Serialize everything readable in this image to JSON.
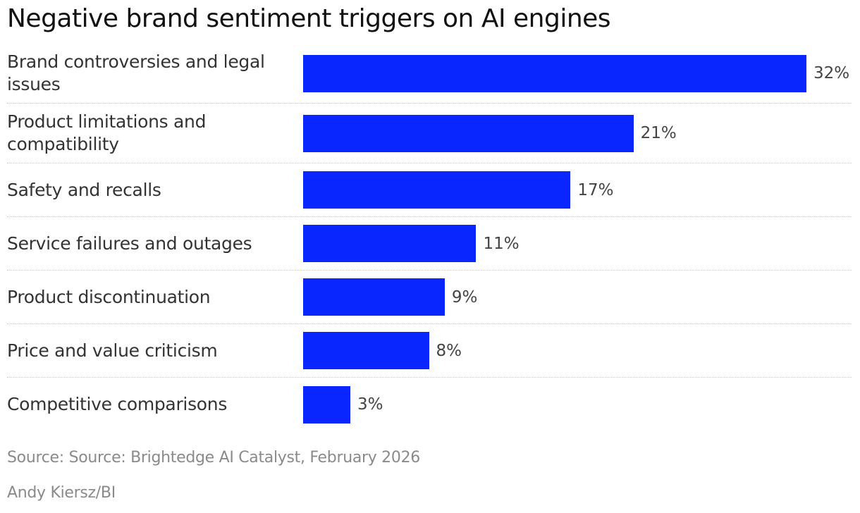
{
  "chart_data": {
    "type": "bar",
    "orientation": "horizontal",
    "title": "Negative brand sentiment triggers on AI engines",
    "categories": [
      "Brand controversies and legal issues",
      "Product limitations and compatibility",
      "Safety and recalls",
      "Service failures and outages",
      "Product discontinuation",
      "Price and value criticism",
      "Competitive comparisons"
    ],
    "values": [
      32,
      21,
      17,
      11,
      9,
      8,
      3
    ],
    "value_labels": [
      "32%",
      "21%",
      "17%",
      "11%",
      "9%",
      "8%",
      "3%"
    ],
    "color": "#0a26ff",
    "source": "Source: Source: Brightedge AI Catalyst, February 2026",
    "credit": "Andy Kiersz/BI"
  }
}
